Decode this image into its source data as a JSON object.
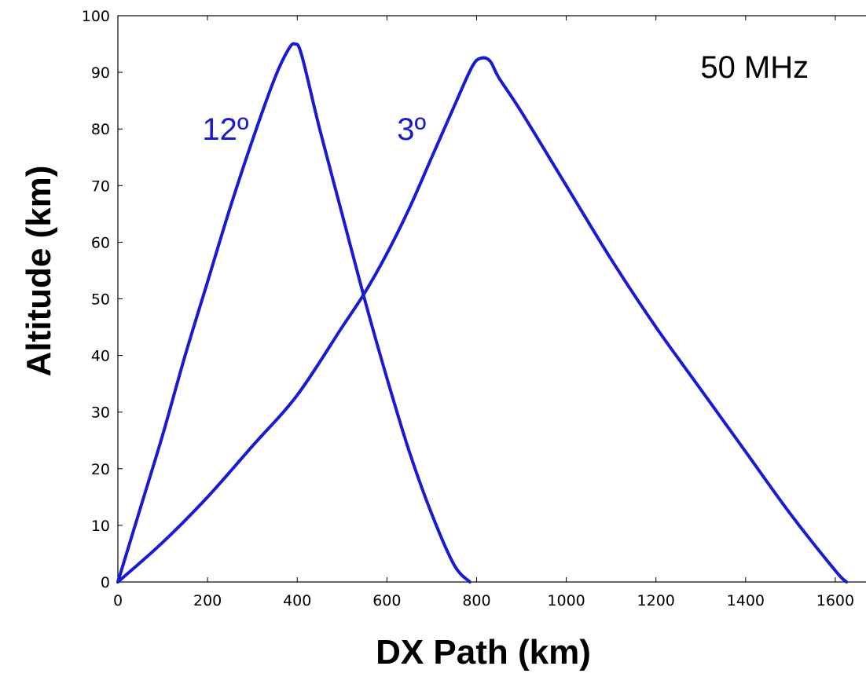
{
  "chart_data": {
    "type": "line",
    "title": "",
    "xlabel": "DX Path (km)",
    "ylabel": "Altitude (km)",
    "xlim": [
      0,
      1700
    ],
    "ylim": [
      0,
      100
    ],
    "xticks": [
      0,
      200,
      400,
      600,
      800,
      1000,
      1200,
      1400,
      1600
    ],
    "yticks": [
      0,
      10,
      20,
      30,
      40,
      50,
      60,
      70,
      80,
      90,
      100
    ],
    "grid": false,
    "line_color": "#1a1ad2",
    "series": [
      {
        "x": [
          0,
          50,
          100,
          150,
          200,
          250,
          300,
          350,
          380,
          395,
          410,
          450,
          500,
          550,
          600,
          650,
          700,
          750,
          785
        ],
        "y": [
          0,
          13,
          26,
          40,
          53,
          66,
          78,
          89,
          94,
          95,
          93,
          80,
          65,
          50,
          36,
          23,
          12,
          3,
          0
        ]
      },
      {
        "x": [
          0,
          100,
          200,
          300,
          400,
          500,
          550,
          600,
          650,
          700,
          750,
          790,
          810,
          830,
          850,
          900,
          1000,
          1100,
          1200,
          1300,
          1400,
          1500,
          1600,
          1625
        ],
        "y": [
          0,
          7,
          15,
          24,
          33,
          45,
          51,
          58,
          66,
          75,
          84,
          91,
          92.5,
          92,
          89,
          83,
          70,
          57,
          45,
          34,
          23,
          12,
          2,
          0
        ]
      }
    ],
    "annotations": [
      {
        "text": "12º",
        "x": 240,
        "y": 80,
        "color": "#1a1ad2"
      },
      {
        "text": "3º",
        "x": 655,
        "y": 80,
        "color": "#1a1ad2"
      },
      {
        "text": "50 MHz",
        "x": 1420,
        "y": 91,
        "color": "#000000"
      }
    ]
  }
}
